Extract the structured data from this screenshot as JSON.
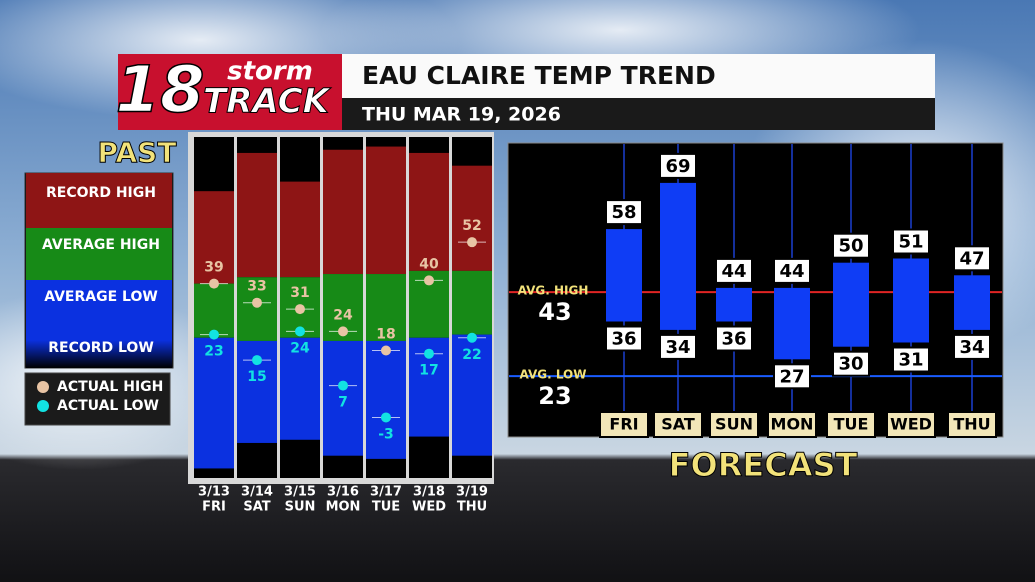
{
  "logo": {
    "number": "18",
    "top": "storm",
    "bottom": "TRACK"
  },
  "header": {
    "title": "EAU CLAIRE TEMP TREND",
    "date": "THU MAR 19, 2026"
  },
  "chart_data": [
    {
      "type": "range-column",
      "title": "PAST",
      "categories": [
        "3/13",
        "3/14",
        "3/15",
        "3/16",
        "3/17",
        "3/18",
        "3/19"
      ],
      "weekdays": [
        "FRI",
        "SAT",
        "SUN",
        "MON",
        "TUE",
        "WED",
        "THU"
      ],
      "ylim": [
        -22,
        85
      ],
      "series": [
        {
          "name": "RECORD HIGH",
          "color": "#8e1515",
          "values": [
            68,
            80,
            71,
            81,
            82,
            80,
            76
          ]
        },
        {
          "name": "AVERAGE HIGH",
          "color": "#178a17",
          "values": [
            39,
            41,
            41,
            42,
            42,
            43,
            43
          ]
        },
        {
          "name": "AVERAGE LOW",
          "color": "#0b31e0",
          "values": [
            22,
            21,
            22,
            21,
            21,
            22,
            23
          ]
        },
        {
          "name": "RECORD LOW",
          "color": "#0a0a14",
          "values": [
            -19,
            -11,
            -10,
            -15,
            -16,
            -9,
            -15
          ]
        },
        {
          "name": "ACTUAL HIGH",
          "color": "#e8c4a4",
          "values": [
            39,
            33,
            31,
            24,
            18,
            40,
            52
          ]
        },
        {
          "name": "ACTUAL LOW",
          "color": "#12e2e2",
          "values": [
            23,
            15,
            24,
            7,
            -3,
            17,
            22
          ]
        }
      ]
    },
    {
      "type": "range-bar",
      "title": "FORECAST",
      "categories": [
        "FRI",
        "SAT",
        "SUN",
        "MON",
        "TUE",
        "WED",
        "THU"
      ],
      "color": "#0f3df5",
      "highs": [
        58,
        69,
        44,
        44,
        50,
        51,
        47
      ],
      "lows": [
        36,
        34,
        36,
        27,
        30,
        31,
        34
      ],
      "ylim": [
        8.5,
        78.5
      ],
      "reference_lines": [
        {
          "label": "AVG. HIGH",
          "value": 43,
          "color": "#e02424"
        },
        {
          "label": "AVG. LOW",
          "value": 23,
          "color": "#1a5cff"
        }
      ]
    }
  ]
}
